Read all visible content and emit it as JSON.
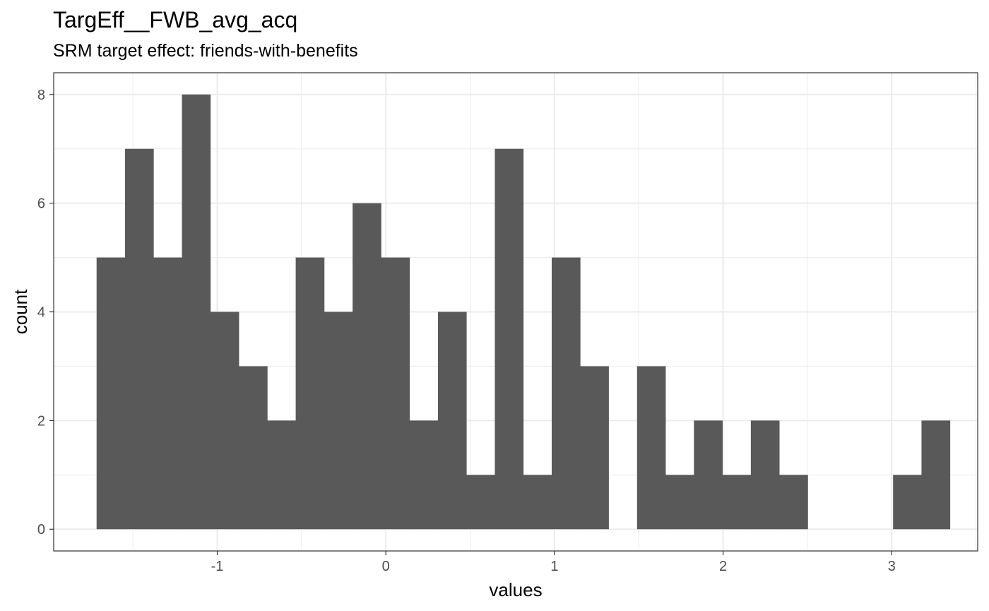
{
  "title": "TargEff__FWB_avg_acq",
  "subtitle": "SRM target effect: friends-with-benefits",
  "chart_data": {
    "type": "bar",
    "subtype": "histogram",
    "title": "TargEff__FWB_avg_acq",
    "subtitle": "SRM target effect: friends-with-benefits",
    "xlabel": "values",
    "ylabel": "count",
    "xlim": [
      -1.97,
      3.51
    ],
    "ylim": [
      -0.4,
      8.4
    ],
    "x_ticks": [
      -1,
      0,
      1,
      2,
      3
    ],
    "x_tick_labels": [
      "-1",
      "0",
      "1",
      "2",
      "3"
    ],
    "y_ticks": [
      0,
      2,
      4,
      6,
      8
    ],
    "y_tick_labels": [
      "0",
      "2",
      "4",
      "6",
      "8"
    ],
    "bin_width": 0.1687,
    "bin_start": -1.7156,
    "counts": [
      5,
      7,
      5,
      8,
      4,
      3,
      2,
      5,
      4,
      6,
      5,
      2,
      4,
      1,
      7,
      1,
      5,
      3,
      0,
      3,
      1,
      2,
      1,
      2,
      1,
      0,
      0,
      0,
      1,
      2
    ],
    "grid": true,
    "bar_color": "#595959",
    "panel_border_color": "#333333",
    "grid_color": "#ebebeb"
  }
}
